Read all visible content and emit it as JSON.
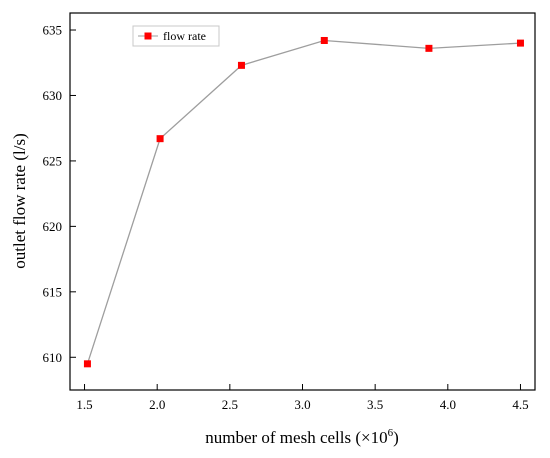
{
  "chart_data": {
    "type": "line",
    "xlabel": "number of mesh cells (×10",
    "xlabel_sup": "6",
    "xlabel_close": ")",
    "ylabel": "outlet flow rate (l/s)",
    "xlim": [
      1.4,
      4.6
    ],
    "ylim": [
      607.5,
      636.3
    ],
    "x_ticks": [
      "1.5",
      "2.0",
      "2.5",
      "3.0",
      "3.5",
      "4.0",
      "4.5"
    ],
    "y_ticks": [
      "610",
      "615",
      "620",
      "625",
      "630",
      "635"
    ],
    "grid": false,
    "legend_position": "top-left",
    "series": [
      {
        "name": "flow rate",
        "color": "#ff0000",
        "line_color": "#9e9e9e",
        "marker": "square",
        "x": [
          1.52,
          2.02,
          2.58,
          3.15,
          3.87,
          4.5
        ],
        "y": [
          609.5,
          626.7,
          632.3,
          634.2,
          633.6,
          634.0
        ]
      }
    ]
  }
}
